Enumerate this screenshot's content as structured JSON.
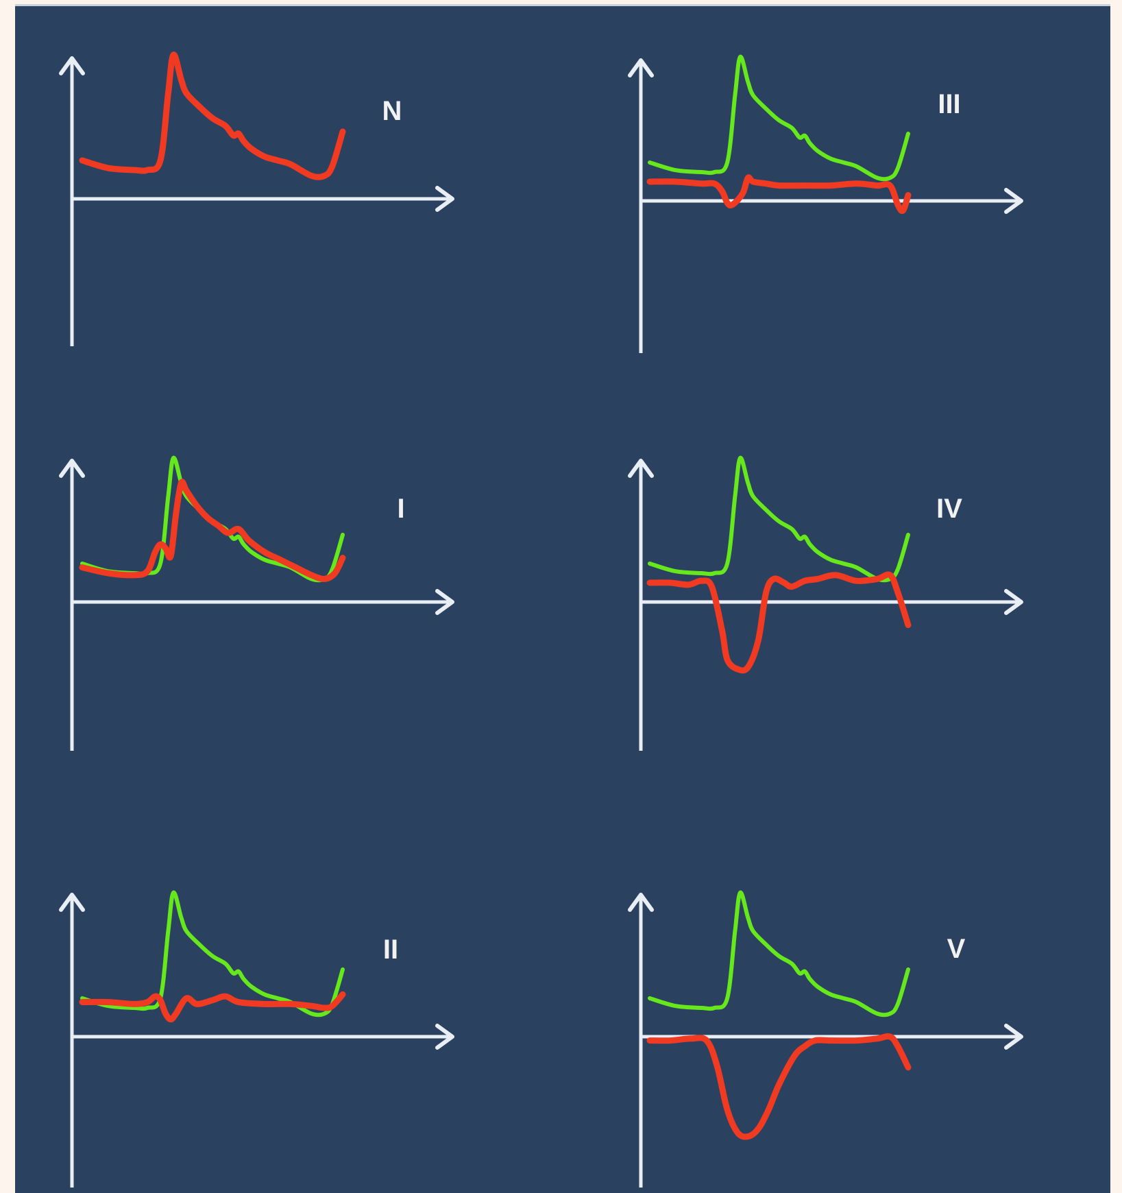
{
  "colors": {
    "background": "#fdf4ee",
    "panel": "#2a4260",
    "axis": "#e8eef4",
    "green_trace": "#66e81c",
    "red_trace": "#f03a22"
  },
  "chart_data": [
    {
      "type": "line",
      "panel_label": "N",
      "grid": false,
      "series": [
        {
          "color": "red",
          "x": [
            0,
            10,
            20,
            25,
            30,
            33,
            35,
            38,
            40,
            45,
            50,
            55,
            58,
            60,
            62,
            65,
            70,
            75,
            80,
            88,
            93,
            96,
            100
          ],
          "y": [
            20,
            16,
            15,
            15,
            20,
            55,
            75,
            62,
            55,
            48,
            42,
            38,
            33,
            34,
            30,
            26,
            22,
            20,
            18,
            12,
            12,
            17,
            35
          ]
        }
      ]
    },
    {
      "type": "line",
      "panel_label": "III",
      "grid": false,
      "series": [
        {
          "color": "green",
          "x": [
            0,
            10,
            20,
            25,
            30,
            33,
            35,
            38,
            40,
            45,
            50,
            55,
            58,
            60,
            62,
            65,
            70,
            75,
            80,
            88,
            93,
            96,
            100
          ],
          "y": [
            20,
            16,
            15,
            15,
            20,
            55,
            75,
            62,
            55,
            48,
            42,
            38,
            33,
            34,
            30,
            26,
            22,
            20,
            18,
            12,
            12,
            17,
            35
          ]
        },
        {
          "color": "red",
          "x": [
            0,
            10,
            20,
            25,
            28,
            30,
            32,
            36,
            38,
            40,
            45,
            50,
            60,
            70,
            80,
            88,
            93,
            96,
            98,
            100
          ],
          "y": [
            10,
            10,
            9,
            9,
            5,
            -1,
            -2,
            4,
            12,
            10,
            9,
            8,
            8,
            8,
            9,
            8,
            8,
            -2,
            -5,
            3
          ]
        }
      ]
    },
    {
      "type": "line",
      "panel_label": "I",
      "grid": false,
      "series": [
        {
          "color": "green",
          "x": [
            0,
            10,
            20,
            25,
            30,
            33,
            35,
            38,
            40,
            45,
            50,
            55,
            58,
            60,
            62,
            65,
            70,
            75,
            80,
            88,
            93,
            96,
            100
          ],
          "y": [
            20,
            16,
            15,
            15,
            20,
            55,
            75,
            62,
            55,
            48,
            42,
            38,
            33,
            34,
            30,
            26,
            22,
            20,
            18,
            12,
            12,
            17,
            35
          ]
        },
        {
          "color": "red",
          "x": [
            0,
            10,
            20,
            25,
            28,
            30,
            32,
            34,
            36,
            38,
            40,
            44,
            48,
            52,
            56,
            60,
            64,
            70,
            76,
            82,
            88,
            93,
            97,
            100
          ],
          "y": [
            18,
            15,
            14,
            16,
            26,
            30,
            28,
            24,
            46,
            62,
            58,
            50,
            44,
            40,
            36,
            38,
            32,
            26,
            22,
            18,
            14,
            12,
            15,
            23
          ]
        }
      ]
    },
    {
      "type": "line",
      "panel_label": "IV",
      "grid": false,
      "series": [
        {
          "color": "green",
          "x": [
            0,
            10,
            20,
            25,
            30,
            33,
            35,
            38,
            40,
            45,
            50,
            55,
            58,
            60,
            62,
            65,
            70,
            75,
            80,
            88,
            93,
            96,
            100
          ],
          "y": [
            20,
            16,
            15,
            15,
            20,
            55,
            75,
            62,
            55,
            48,
            42,
            38,
            33,
            34,
            30,
            26,
            22,
            20,
            18,
            12,
            12,
            17,
            35
          ]
        },
        {
          "color": "red",
          "x": [
            0,
            8,
            15,
            20,
            24,
            28,
            30,
            34,
            38,
            42,
            45,
            48,
            52,
            55,
            60,
            65,
            72,
            80,
            88,
            93,
            96,
            100
          ],
          "y": [
            10,
            10,
            9,
            11,
            8,
            -15,
            -30,
            -35,
            -34,
            -20,
            5,
            12,
            10,
            8,
            11,
            12,
            14,
            11,
            12,
            14,
            5,
            -12
          ]
        }
      ]
    },
    {
      "type": "line",
      "panel_label": "II",
      "grid": false,
      "series": [
        {
          "color": "green",
          "x": [
            0,
            10,
            20,
            25,
            30,
            33,
            35,
            38,
            40,
            45,
            50,
            55,
            58,
            60,
            62,
            65,
            70,
            75,
            80,
            88,
            93,
            96,
            100
          ],
          "y": [
            20,
            16,
            15,
            15,
            20,
            55,
            75,
            62,
            55,
            48,
            42,
            38,
            33,
            34,
            30,
            26,
            22,
            20,
            18,
            12,
            12,
            17,
            35
          ]
        },
        {
          "color": "red",
          "x": [
            0,
            10,
            20,
            25,
            28,
            30,
            32,
            34,
            36,
            40,
            44,
            50,
            55,
            60,
            70,
            80,
            88,
            93,
            96,
            100
          ],
          "y": [
            18,
            18,
            17,
            18,
            21,
            19,
            12,
            9,
            12,
            20,
            17,
            19,
            21,
            18,
            17,
            17,
            16,
            15,
            16,
            22
          ]
        }
      ]
    },
    {
      "type": "line",
      "panel_label": "V",
      "grid": false,
      "series": [
        {
          "color": "green",
          "x": [
            0,
            10,
            20,
            25,
            30,
            33,
            35,
            38,
            40,
            45,
            50,
            55,
            58,
            60,
            62,
            65,
            70,
            75,
            80,
            88,
            93,
            96,
            100
          ],
          "y": [
            20,
            16,
            15,
            15,
            20,
            55,
            75,
            62,
            55,
            48,
            42,
            38,
            33,
            34,
            30,
            26,
            22,
            20,
            18,
            12,
            12,
            17,
            35
          ]
        },
        {
          "color": "red",
          "x": [
            0,
            8,
            16,
            22,
            26,
            30,
            34,
            38,
            42,
            46,
            50,
            56,
            60,
            64,
            70,
            80,
            88,
            93,
            96,
            100
          ],
          "y": [
            -2,
            -2,
            -1,
            -2,
            -15,
            -38,
            -50,
            -52,
            -48,
            -38,
            -25,
            -10,
            -5,
            -2,
            -2,
            -2,
            -1,
            0,
            -5,
            -16
          ]
        }
      ]
    }
  ]
}
